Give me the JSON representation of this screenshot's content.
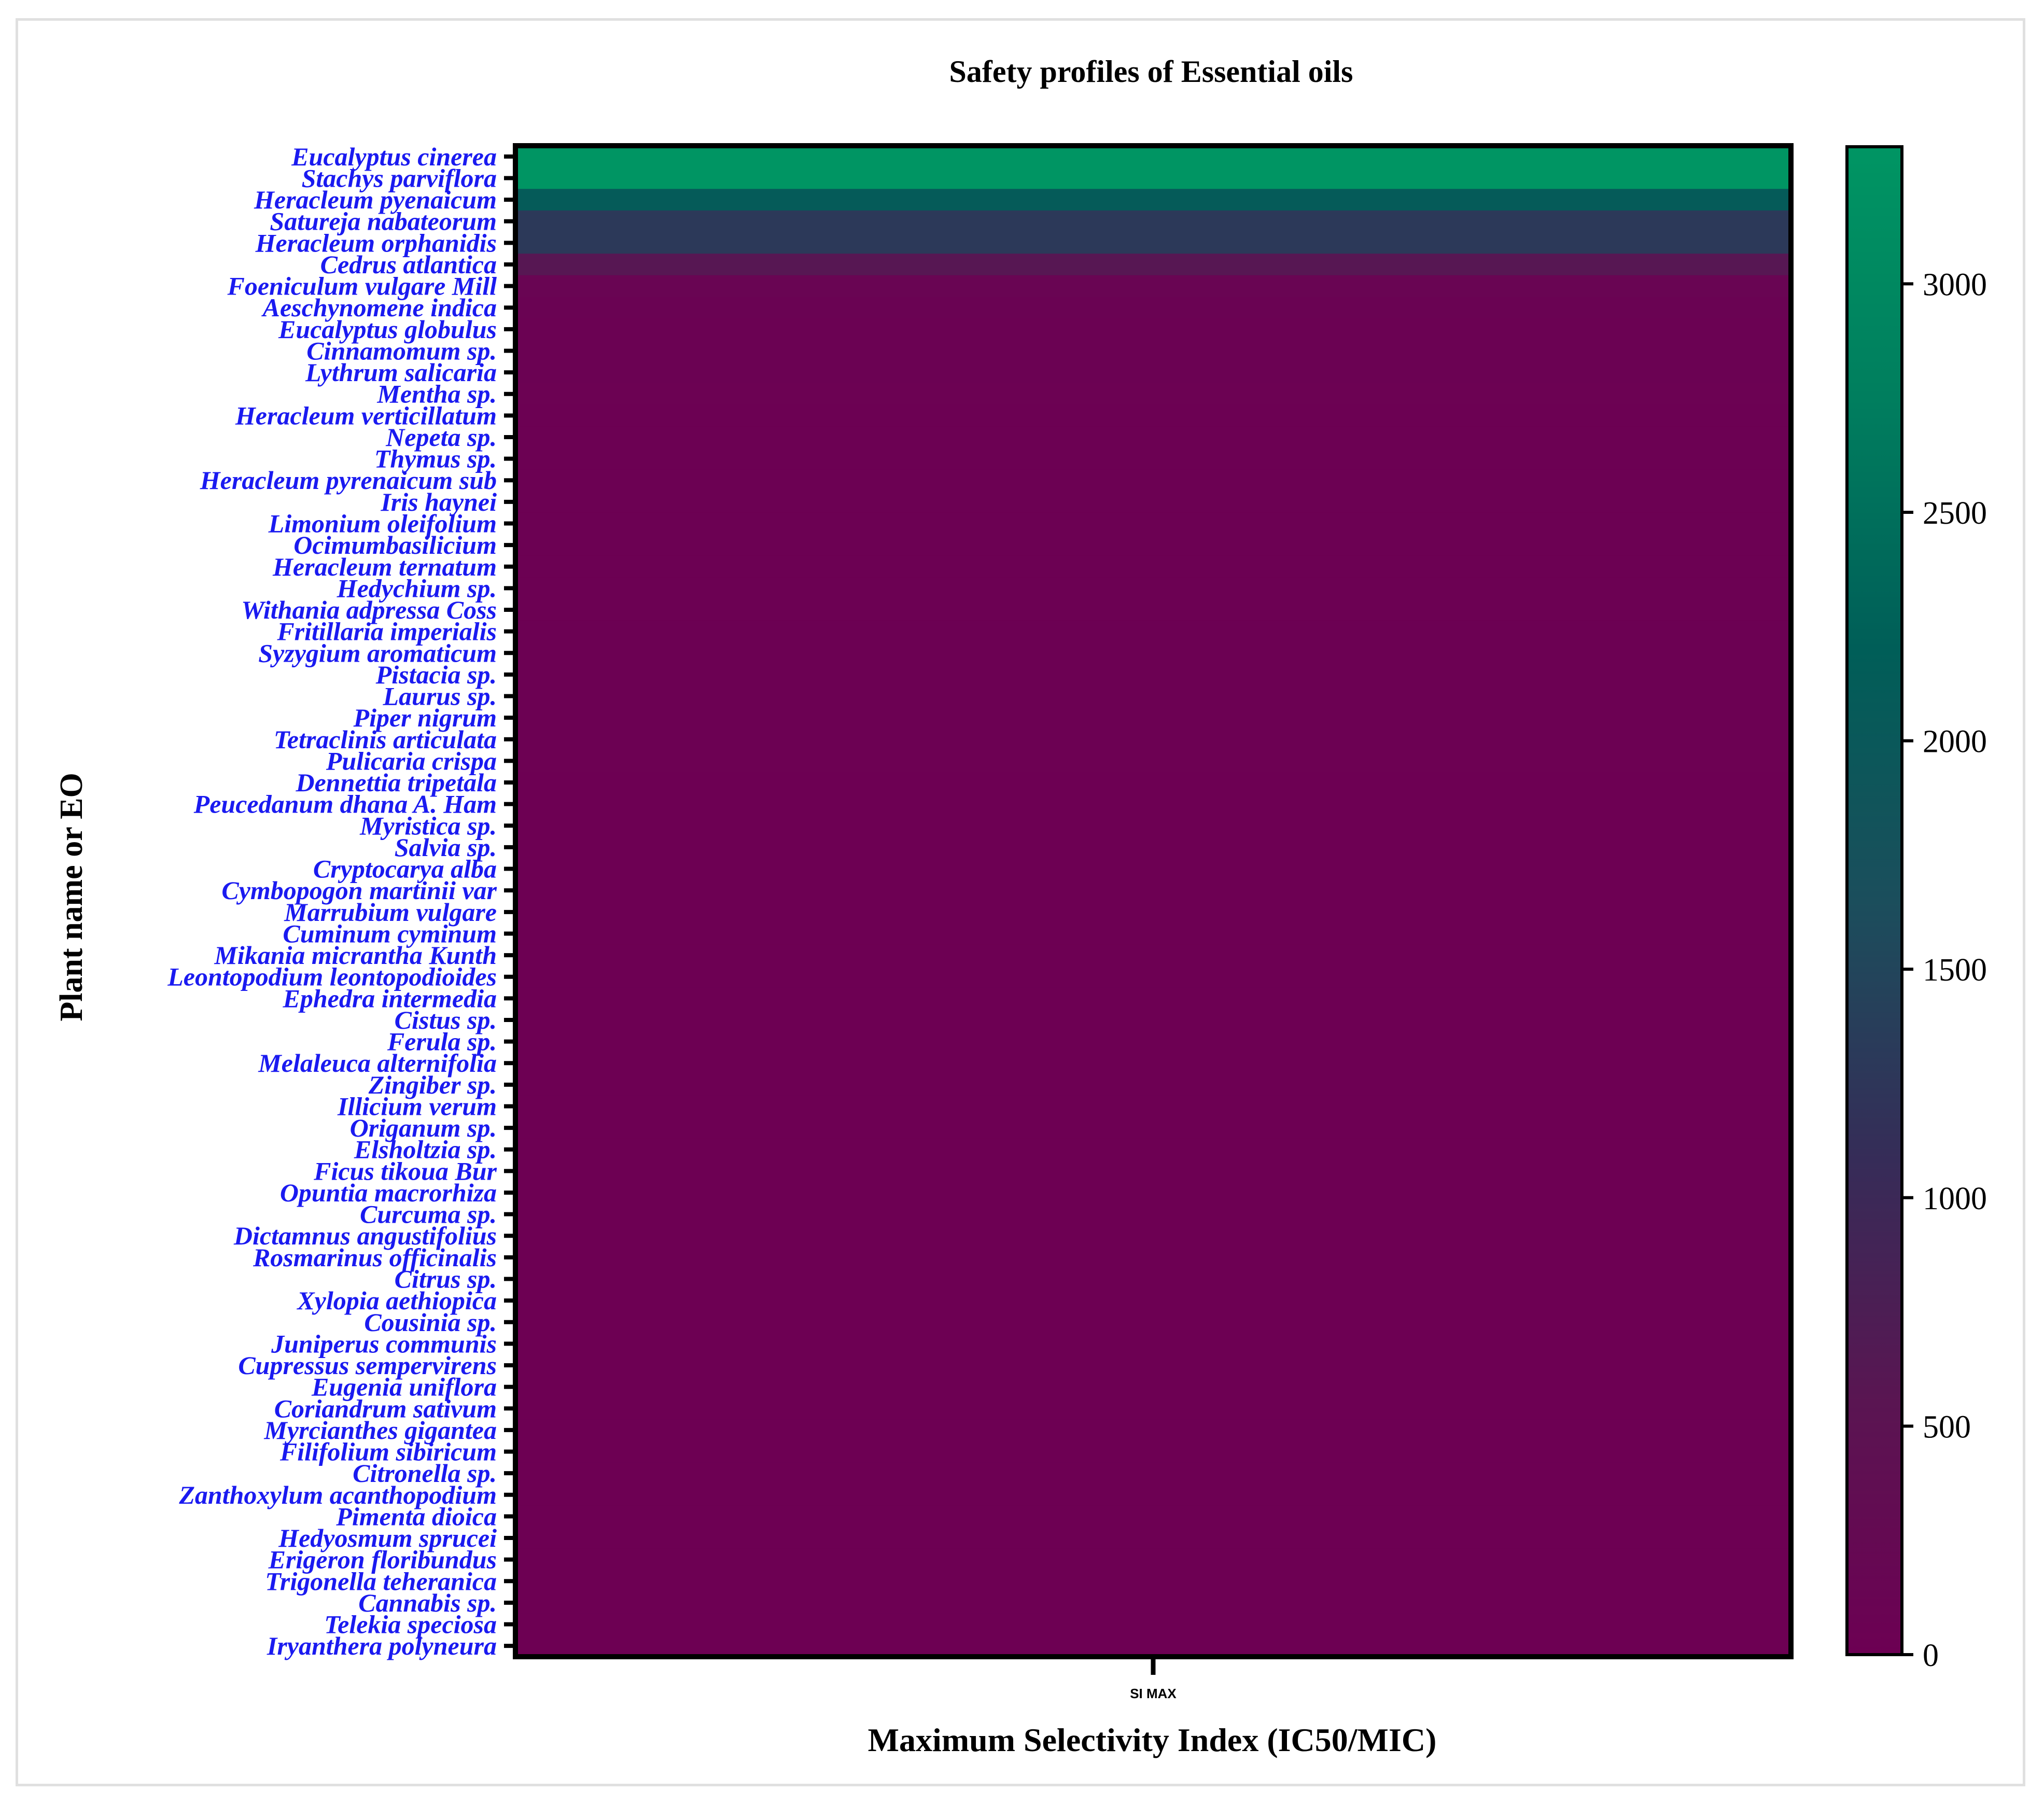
{
  "chart_data": {
    "type": "heatmap",
    "title": "Safety profiles of  Essential oils",
    "xlabel": "Maximum Selectivity Index (IC50/MIC)",
    "ylabel": "Plant name or EO",
    "x_categories": [
      "SI MAX"
    ],
    "y_categories": [
      "Eucalyptus cinerea",
      "Stachys parviflora",
      "Heracleum pyenaicum",
      "Satureja nabateorum",
      "Heracleum orphanidis",
      "Cedrus atlantica",
      "Foeniculum vulgare Mill",
      "Aeschynomene indica",
      "Eucalyptus globulus",
      "Cinnamomum sp.",
      "Lythrum salicaria",
      "Mentha sp.",
      "Heracleum verticillatum",
      "Nepeta sp.",
      "Thymus sp.",
      "Heracleum pyrenaicum sub",
      "Iris haynei",
      "Limonium oleifolium",
      "Ocimumbasilicium",
      "Heracleum ternatum",
      "Hedychium sp.",
      "Withania adpressa Coss",
      "Fritillaria imperialis",
      "Syzygium aromaticum",
      "Pistacia sp.",
      "Laurus sp.",
      "Piper nigrum",
      "Tetraclinis articulata",
      "Pulicaria crispa",
      "Dennettia tripetala",
      "Peucedanum dhana A. Ham",
      "Myristica sp.",
      "Salvia sp.",
      "Cryptocarya alba",
      "Cymbopogon martinii var",
      "Marrubium vulgare",
      "Cuminum cyminum",
      "Mikania micrantha Kunth",
      "Leontopodium leontopodioides",
      "Ephedra intermedia",
      "Cistus sp.",
      "Ferula sp.",
      "Melaleuca alternifolia",
      "Zingiber sp.",
      "Illicium verum",
      "Origanum sp.",
      "Elsholtzia sp.",
      "Ficus tikoua Bur",
      "Opuntia macrorhiza",
      "Curcuma sp.",
      "Dictamnus angustifolius",
      "Rosmarinus officinalis",
      "Citrus sp.",
      "Xylopia aethiopica",
      "Cousinia sp.",
      "Juniperus communis",
      "Cupressus sempervirens",
      "Eugenia uniflora",
      "Coriandrum sativum",
      "Myrcianthes gigantea",
      "Filifolium sibiricum",
      "Citronella sp.",
      "Zanthoxylum acanthopodium",
      "Pimenta dioica",
      "Hedyosmum sprucei",
      "Erigeron floribundus",
      "Trigonella teheranica",
      "Cannabis sp.",
      "Telekia speciosa",
      "Iryanthera polyneura"
    ],
    "values": [
      3300,
      3300,
      2100,
      1300,
      1300,
      600,
      120,
      80,
      60,
      50,
      45,
      40,
      38,
      35,
      33,
      30,
      28,
      26,
      25,
      24,
      22,
      21,
      20,
      19,
      18,
      17,
      16,
      15,
      14,
      13,
      12,
      12,
      11,
      11,
      10,
      10,
      9,
      9,
      8,
      8,
      7,
      7,
      6,
      6,
      6,
      5,
      5,
      5,
      4,
      4,
      4,
      3,
      3,
      3,
      3,
      2,
      2,
      2,
      2,
      2,
      2,
      1,
      1,
      1,
      1,
      1,
      1,
      1,
      1,
      1
    ],
    "colorbar": {
      "min": 0,
      "max": 3300,
      "ticks": [
        "0",
        "500",
        "1000",
        "1500",
        "2000",
        "2500",
        "3000"
      ],
      "tick_values": [
        0,
        500,
        1000,
        1500,
        2000,
        2500,
        3000
      ],
      "colors": [
        "#6d0053",
        "#5a1552",
        "#352d58",
        "#1b4e5c",
        "#005e58",
        "#007e5e",
        "#009563"
      ]
    },
    "label_color": "#1a1af0",
    "legend": "right"
  }
}
